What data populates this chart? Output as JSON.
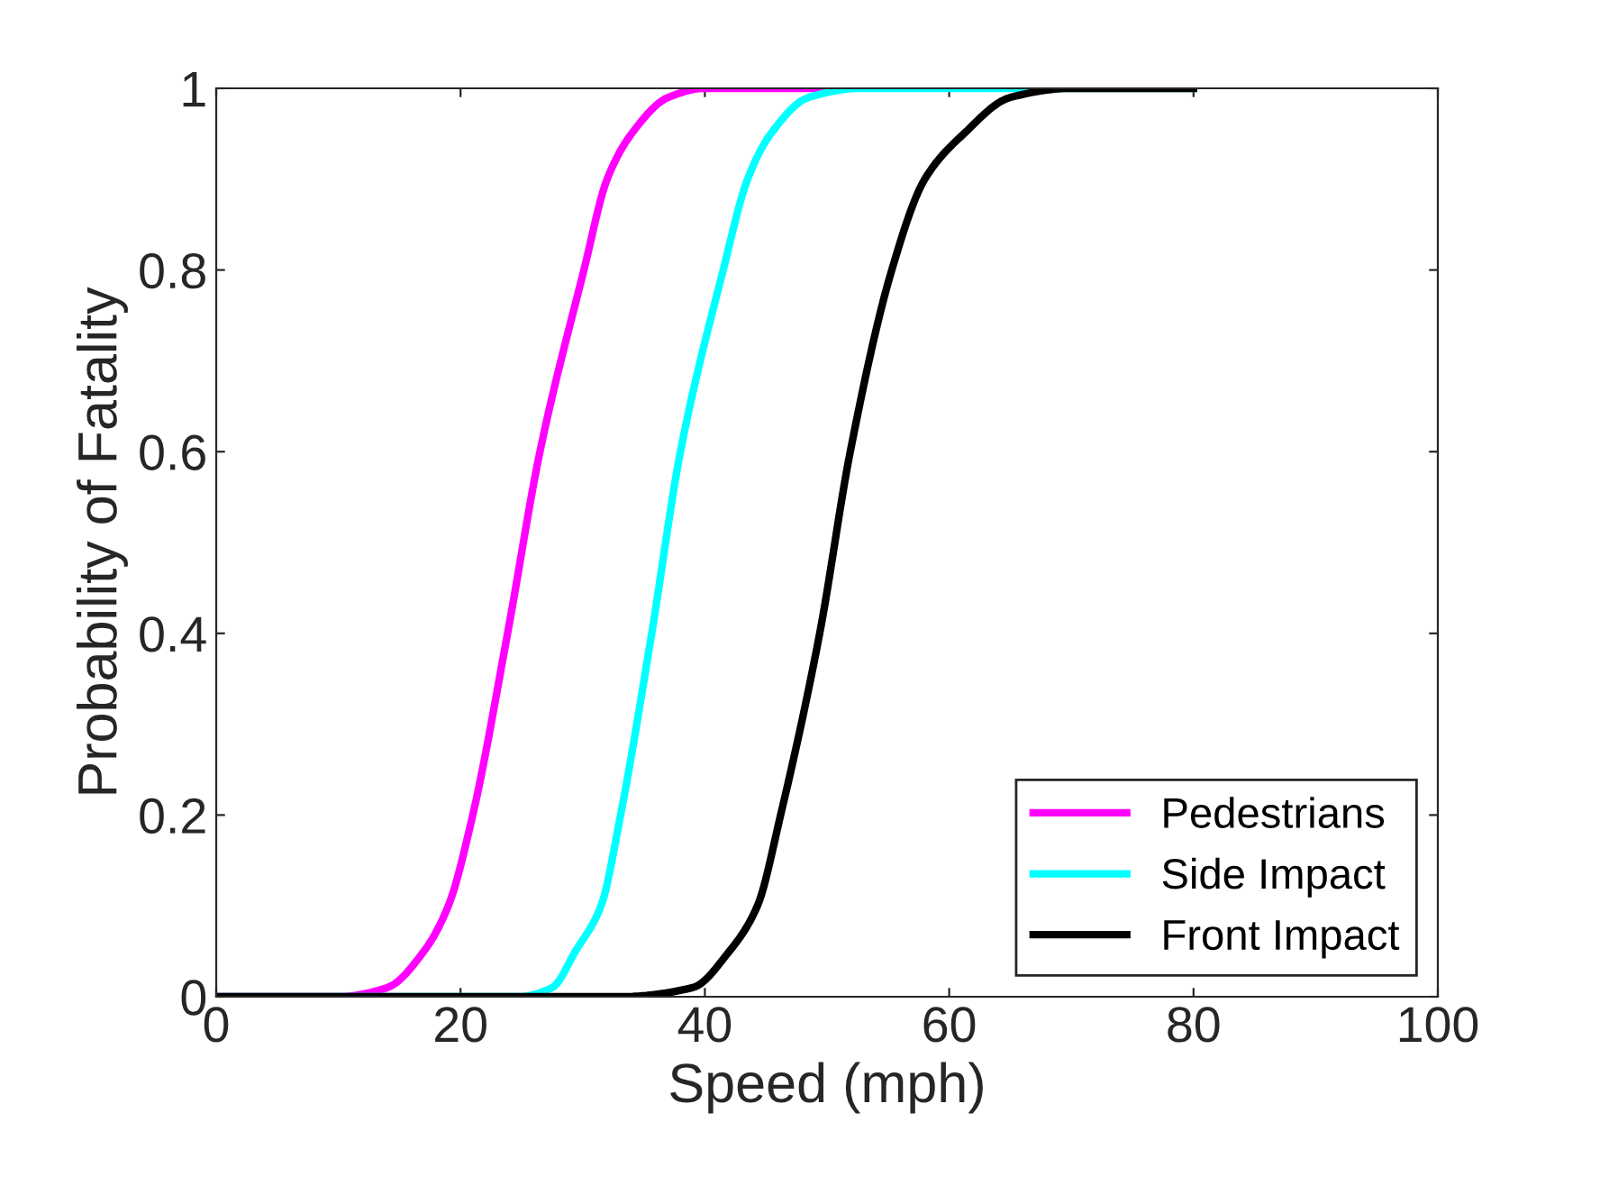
{
  "chart_data": {
    "type": "line",
    "xlabel": "Speed (mph)",
    "ylabel": "Probability of Fatality",
    "xlim": [
      0,
      100
    ],
    "ylim": [
      0,
      1
    ],
    "xticks": [
      0,
      20,
      40,
      60,
      80,
      100
    ],
    "yticks": [
      0,
      0.2,
      0.4,
      0.6,
      0.8,
      1
    ],
    "grid": false,
    "legend": "bottom right",
    "marker": "none",
    "line_style": "solid",
    "series": [
      {
        "name": "Pedestrians",
        "color": "#ff00ff",
        "x": [
          0,
          10,
          14,
          17,
          19,
          21,
          23.85,
          26.5,
          30.1,
          32,
          34,
          37,
          40,
          50
        ],
        "values": [
          0,
          0,
          0.01,
          0.05,
          0.1,
          0.2,
          0.4,
          0.6,
          0.8,
          0.9,
          0.95,
          0.99,
          1,
          1
        ]
      },
      {
        "name": "Side Impact",
        "color": "#00ffff",
        "x": [
          0,
          20,
          24.7,
          27.5,
          29.4,
          31.5,
          33.1,
          35.65,
          38,
          41.5,
          43.5,
          45.4,
          48.5,
          52.8,
          60,
          70,
          80
        ],
        "values": [
          0,
          0,
          0,
          0.01,
          0.05,
          0.1,
          0.2,
          0.4,
          0.6,
          0.8,
          0.9,
          0.95,
          0.99,
          1,
          1,
          1,
          1
        ]
      },
      {
        "name": "Front Impact",
        "color": "#000000",
        "x": [
          0,
          20,
          33,
          39,
          42,
          44.3,
          46.2,
          49.4,
          51.9,
          55.3,
          58,
          61.2,
          65,
          70,
          75,
          80
        ],
        "values": [
          0,
          0,
          0,
          0.01,
          0.05,
          0.1,
          0.2,
          0.4,
          0.6,
          0.8,
          0.9,
          0.95,
          0.99,
          1,
          1,
          1
        ]
      }
    ]
  }
}
